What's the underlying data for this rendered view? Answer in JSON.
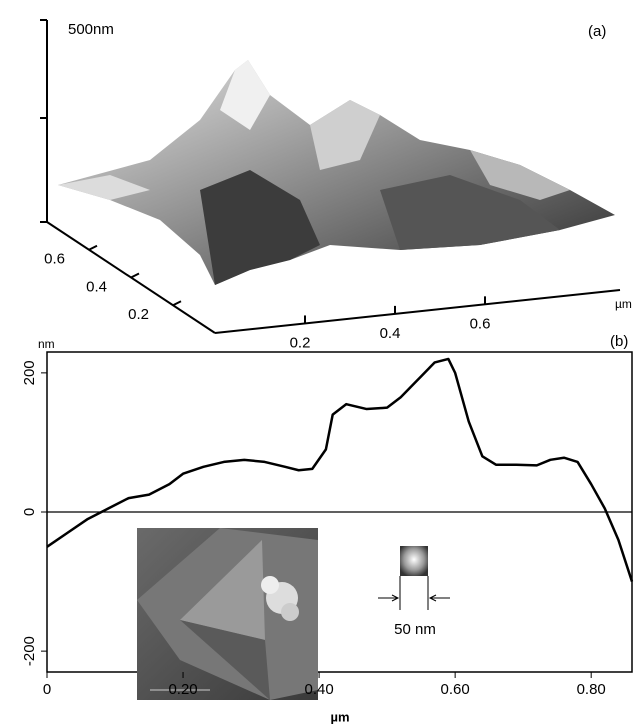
{
  "chart_data": [
    {
      "type": "surface",
      "panel_label": "(a)",
      "z_label": "500nm",
      "x_label": "µm",
      "xlim": [
        0,
        0.9
      ],
      "xticks": [
        0.2,
        0.4,
        0.6
      ],
      "ylim": [
        0,
        0.8
      ],
      "yticks": [
        0.2,
        0.4,
        0.6
      ]
    },
    {
      "type": "line",
      "panel_label": "(b)",
      "y_label": "nm",
      "x_label": "µm",
      "x": [
        0,
        0.03,
        0.06,
        0.09,
        0.12,
        0.15,
        0.18,
        0.2,
        0.23,
        0.26,
        0.29,
        0.32,
        0.35,
        0.37,
        0.39,
        0.41,
        0.42,
        0.44,
        0.47,
        0.5,
        0.52,
        0.55,
        0.57,
        0.59,
        0.6,
        0.62,
        0.64,
        0.66,
        0.69,
        0.72,
        0.74,
        0.76,
        0.78,
        0.8,
        0.82,
        0.84,
        0.86
      ],
      "series": [
        {
          "color": "#000000",
          "values": [
            -50,
            -30,
            -10,
            5,
            20,
            25,
            40,
            55,
            65,
            72,
            75,
            72,
            65,
            60,
            62,
            90,
            140,
            155,
            148,
            150,
            165,
            195,
            215,
            220,
            200,
            130,
            80,
            68,
            68,
            67,
            75,
            78,
            72,
            40,
            5,
            -40,
            -100
          ]
        }
      ],
      "xlim": [
        0,
        0.86
      ],
      "xticks": [
        0,
        {
          "value": 0.2,
          "label": "0.20"
        },
        {
          "value": 0.4,
          "label": "0.40"
        },
        {
          "value": 0.6,
          "label": "0.60"
        },
        {
          "value": 0.8,
          "label": "0.80"
        }
      ],
      "ylim": [
        -230,
        230
      ],
      "yticks": [
        -200,
        0,
        200
      ],
      "annotation": "50 nm"
    }
  ]
}
